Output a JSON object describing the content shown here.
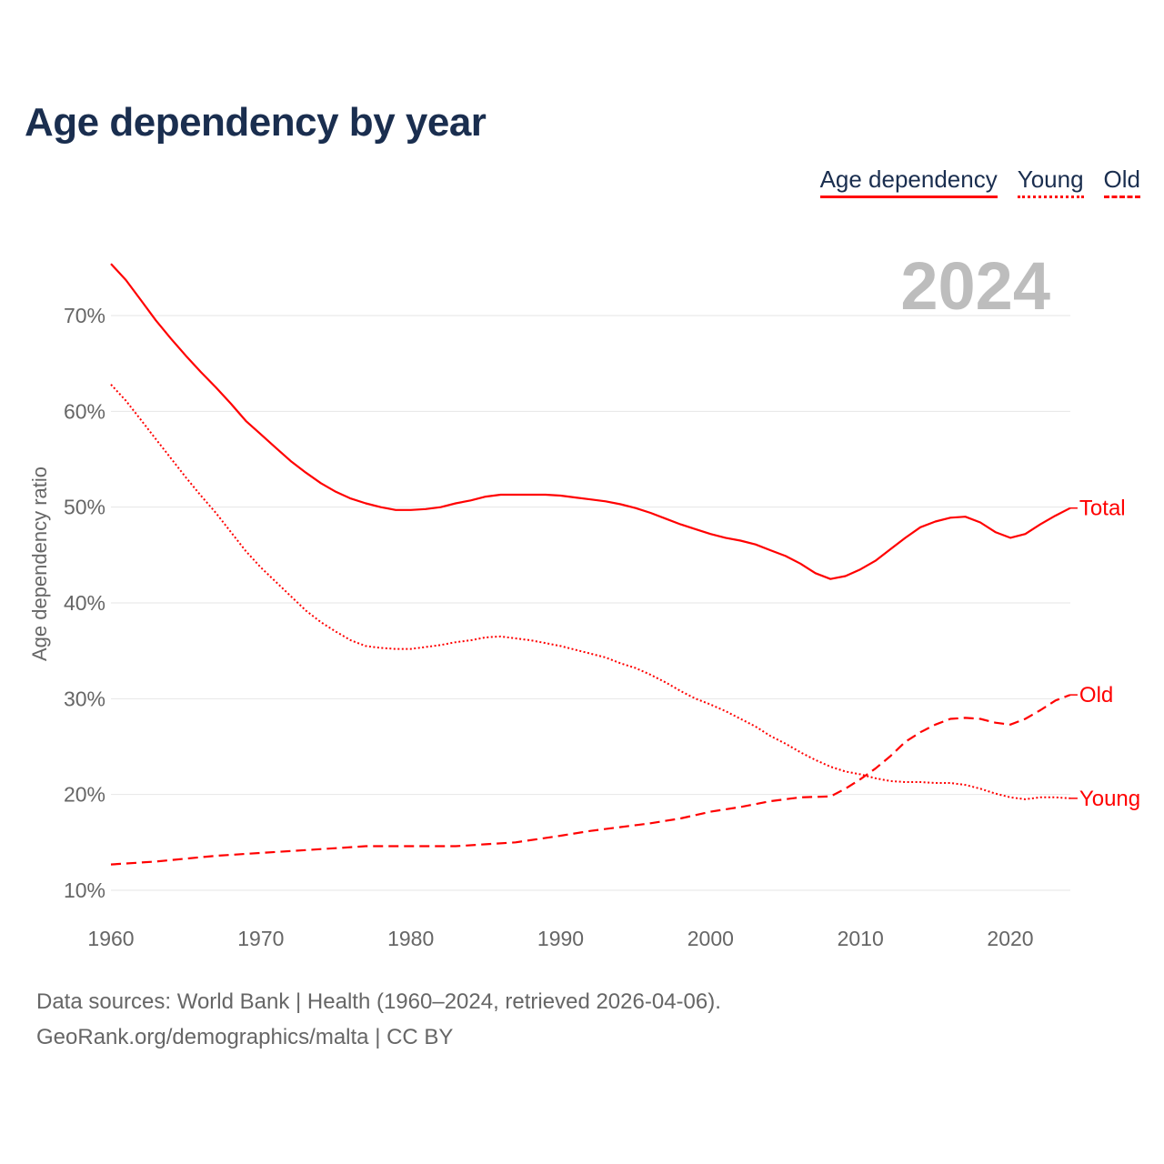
{
  "chart_data": {
    "type": "line",
    "title": "Age dependency by year",
    "ylabel": "Age dependency ratio",
    "xlabel": "",
    "xlim": [
      1960,
      2024
    ],
    "ylim": [
      10,
      75
    ],
    "x_ticks": [
      1960,
      1970,
      1980,
      1990,
      2000,
      2010,
      2020
    ],
    "y_ticks": [
      10,
      20,
      30,
      40,
      50,
      60,
      70
    ],
    "y_tick_labels": [
      "10%",
      "20%",
      "30%",
      "40%",
      "50%",
      "60%",
      "70%"
    ],
    "grid": "horizontal",
    "legend_position": "top-right",
    "year_label": "2024",
    "color": "#ff0000",
    "series": [
      {
        "name": "Age dependency",
        "end_label": "Total",
        "style": "solid",
        "x": [
          1960,
          1961,
          1962,
          1963,
          1964,
          1965,
          1966,
          1967,
          1968,
          1969,
          1970,
          1971,
          1972,
          1973,
          1974,
          1975,
          1976,
          1977,
          1978,
          1979,
          1980,
          1981,
          1982,
          1983,
          1984,
          1985,
          1986,
          1987,
          1988,
          1989,
          1990,
          1991,
          1992,
          1993,
          1994,
          1995,
          1996,
          1997,
          1998,
          1999,
          2000,
          2001,
          2002,
          2003,
          2004,
          2005,
          2006,
          2007,
          2008,
          2009,
          2010,
          2011,
          2012,
          2013,
          2014,
          2015,
          2016,
          2017,
          2018,
          2019,
          2020,
          2021,
          2022,
          2023,
          2024
        ],
        "values": [
          75.4,
          73.7,
          71.6,
          69.5,
          67.6,
          65.8,
          64.1,
          62.5,
          60.8,
          59.0,
          57.6,
          56.2,
          54.8,
          53.6,
          52.5,
          51.6,
          50.9,
          50.4,
          50.0,
          49.7,
          49.7,
          49.8,
          50.0,
          50.4,
          50.7,
          51.1,
          51.3,
          51.3,
          51.3,
          51.3,
          51.2,
          51.0,
          50.8,
          50.6,
          50.3,
          49.9,
          49.4,
          48.8,
          48.2,
          47.7,
          47.2,
          46.8,
          46.5,
          46.1,
          45.5,
          44.9,
          44.1,
          43.1,
          42.5,
          42.8,
          43.5,
          44.4,
          45.6,
          46.8,
          47.9,
          48.5,
          48.9,
          49.0,
          48.4,
          47.4,
          46.8,
          47.2,
          48.2,
          49.1,
          49.9
        ]
      },
      {
        "name": "Young",
        "end_label": "Young",
        "style": "dotted",
        "x": [
          1960,
          1961,
          1962,
          1963,
          1964,
          1965,
          1966,
          1967,
          1968,
          1969,
          1970,
          1971,
          1972,
          1973,
          1974,
          1975,
          1976,
          1977,
          1978,
          1979,
          1980,
          1981,
          1982,
          1983,
          1984,
          1985,
          1986,
          1987,
          1988,
          1989,
          1990,
          1991,
          1992,
          1993,
          1994,
          1995,
          1996,
          1997,
          1998,
          1999,
          2000,
          2001,
          2002,
          2003,
          2004,
          2005,
          2006,
          2007,
          2008,
          2009,
          2010,
          2011,
          2012,
          2013,
          2014,
          2015,
          2016,
          2017,
          2018,
          2019,
          2020,
          2021,
          2022,
          2023,
          2024
        ],
        "values": [
          62.8,
          61.1,
          59.1,
          57.1,
          55.1,
          53.1,
          51.2,
          49.4,
          47.4,
          45.4,
          43.7,
          42.2,
          40.7,
          39.2,
          38.0,
          37.0,
          36.1,
          35.5,
          35.3,
          35.2,
          35.2,
          35.4,
          35.6,
          35.9,
          36.1,
          36.4,
          36.5,
          36.3,
          36.1,
          35.8,
          35.5,
          35.1,
          34.7,
          34.3,
          33.7,
          33.2,
          32.5,
          31.7,
          30.8,
          30.0,
          29.4,
          28.7,
          27.9,
          27.1,
          26.1,
          25.3,
          24.4,
          23.6,
          22.9,
          22.4,
          22.1,
          21.7,
          21.4,
          21.3,
          21.3,
          21.2,
          21.2,
          21.0,
          20.6,
          20.1,
          19.7,
          19.5,
          19.7,
          19.7,
          19.6
        ]
      },
      {
        "name": "Old",
        "end_label": "Old",
        "style": "dashed",
        "x": [
          1960,
          1963,
          1965,
          1967,
          1970,
          1973,
          1975,
          1977,
          1980,
          1983,
          1985,
          1987,
          1990,
          1992,
          1994,
          1996,
          1998,
          2000,
          2002,
          2004,
          2006,
          2008,
          2009,
          2010,
          2011,
          2012,
          2013,
          2014,
          2015,
          2016,
          2017,
          2018,
          2019,
          2020,
          2021,
          2022,
          2023,
          2024
        ],
        "values": [
          12.7,
          13.0,
          13.3,
          13.6,
          13.9,
          14.2,
          14.4,
          14.6,
          14.6,
          14.6,
          14.8,
          15.0,
          15.7,
          16.2,
          16.6,
          17.0,
          17.5,
          18.2,
          18.7,
          19.3,
          19.7,
          19.8,
          20.6,
          21.6,
          22.7,
          24.0,
          25.5,
          26.5,
          27.3,
          27.9,
          28.0,
          27.9,
          27.5,
          27.3,
          27.9,
          28.8,
          29.8,
          30.4
        ]
      }
    ]
  },
  "footer": {
    "sources": "Data sources: World Bank | Health (1960–2024, retrieved 2026-04-06).",
    "credit": "GeoRank.org/demographics/malta | CC BY"
  }
}
